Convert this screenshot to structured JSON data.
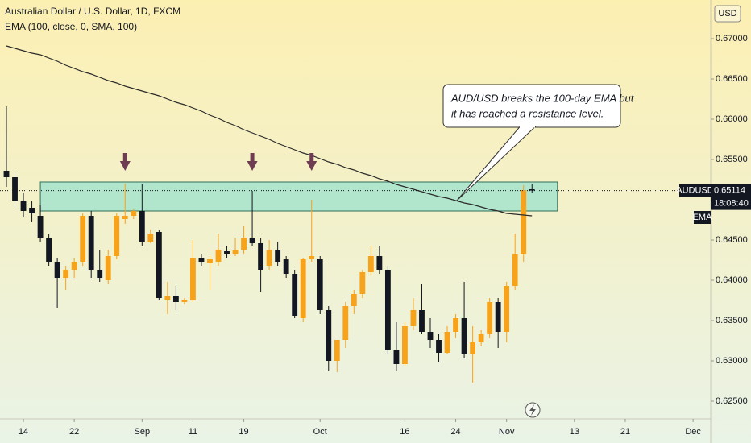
{
  "chart_data": {
    "type": "candlestick",
    "title": "Australian Dollar / U.S. Dollar, 1D, FXCM",
    "subtitle": "EMA (100, close, 0, SMA, 100)",
    "currency": "USD",
    "symbol": "AUDUSD",
    "countdown": "18:08:40",
    "up_color": "#f7a21b",
    "down_color": "#131722",
    "open": [
      0.6536,
      0.6528,
      0.6498,
      0.649,
      0.648,
      0.6453,
      0.6423,
      0.6403,
      0.6413,
      0.6423,
      0.648,
      0.6413,
      0.64,
      0.643,
      0.6476,
      0.648,
      0.6486,
      0.6448,
      0.646,
      0.6376,
      0.638,
      0.6373,
      0.6375,
      0.6428,
      0.6421,
      0.6423,
      0.6436,
      0.6433,
      0.6438,
      0.6453,
      0.6446,
      0.6418,
      0.6438,
      0.6426,
      0.6408,
      0.6353,
      0.6426,
      0.6426,
      0.6363,
      0.63,
      0.6326,
      0.6368,
      0.6383,
      0.641,
      0.643,
      0.6413,
      0.6313,
      0.6296,
      0.6343,
      0.6363,
      0.6336,
      0.6326,
      0.631,
      0.6336,
      0.6353,
      0.6308,
      0.6323,
      0.6333,
      0.6373,
      0.6336,
      0.6393,
      0.6433,
      0.6513
    ],
    "high": [
      0.6616,
      0.6533,
      0.6508,
      0.6498,
      0.6493,
      0.6458,
      0.6428,
      0.6418,
      0.6428,
      0.6483,
      0.6486,
      0.6438,
      0.6438,
      0.6483,
      0.652,
      0.6488,
      0.652,
      0.6463,
      0.6463,
      0.6398,
      0.6393,
      0.6378,
      0.645,
      0.6433,
      0.643,
      0.6458,
      0.6443,
      0.6453,
      0.6468,
      0.6511,
      0.6453,
      0.645,
      0.6448,
      0.643,
      0.6413,
      0.6428,
      0.65,
      0.643,
      0.6368,
      0.6323,
      0.6373,
      0.6388,
      0.6413,
      0.6443,
      0.6443,
      0.6418,
      0.6348,
      0.6348,
      0.6378,
      0.6396,
      0.6353,
      0.6333,
      0.6343,
      0.6358,
      0.6398,
      0.6343,
      0.6338,
      0.6378,
      0.6378,
      0.6398,
      0.6458,
      0.6518,
      0.652
    ],
    "low": [
      0.6516,
      0.649,
      0.6478,
      0.6473,
      0.6448,
      0.6418,
      0.6366,
      0.6388,
      0.6403,
      0.6418,
      0.6403,
      0.6398,
      0.6396,
      0.6426,
      0.647,
      0.6476,
      0.6443,
      0.6446,
      0.6376,
      0.6358,
      0.6363,
      0.637,
      0.6373,
      0.6418,
      0.6388,
      0.6418,
      0.6428,
      0.643,
      0.6433,
      0.6443,
      0.6386,
      0.6413,
      0.6418,
      0.6403,
      0.6353,
      0.6348,
      0.6423,
      0.6358,
      0.6288,
      0.6286,
      0.6316,
      0.6358,
      0.6378,
      0.6406,
      0.6408,
      0.6308,
      0.6288,
      0.6293,
      0.6338,
      0.6333,
      0.6316,
      0.6298,
      0.6308,
      0.6328,
      0.6303,
      0.6273,
      0.6318,
      0.6328,
      0.6316,
      0.6323,
      0.6388,
      0.6423,
      0.6508
    ],
    "close": [
      0.6528,
      0.6498,
      0.6486,
      0.6483,
      0.6453,
      0.6423,
      0.6403,
      0.6413,
      0.6423,
      0.648,
      0.6413,
      0.6403,
      0.643,
      0.648,
      0.648,
      0.6486,
      0.6448,
      0.6458,
      0.6378,
      0.638,
      0.6373,
      0.6375,
      0.6428,
      0.6423,
      0.6426,
      0.6438,
      0.6433,
      0.6438,
      0.6453,
      0.6446,
      0.6413,
      0.6438,
      0.6423,
      0.6408,
      0.6356,
      0.6426,
      0.643,
      0.6363,
      0.63,
      0.6326,
      0.6368,
      0.6383,
      0.641,
      0.643,
      0.6413,
      0.6313,
      0.6296,
      0.6343,
      0.6363,
      0.6336,
      0.6326,
      0.631,
      0.6336,
      0.6353,
      0.6308,
      0.6323,
      0.6333,
      0.6373,
      0.6336,
      0.6393,
      0.6433,
      0.6512,
      0.65114
    ],
    "ema": {
      "name": "EMA",
      "color": "#2b2b2b",
      "values": [
        0.6691,
        0.6688,
        0.6685,
        0.6682,
        0.668,
        0.6676,
        0.6672,
        0.6667,
        0.6663,
        0.6659,
        0.6656,
        0.6652,
        0.6648,
        0.6645,
        0.6641,
        0.6638,
        0.6635,
        0.6632,
        0.6629,
        0.6625,
        0.6621,
        0.6618,
        0.6614,
        0.661,
        0.6605,
        0.6601,
        0.6596,
        0.6592,
        0.6587,
        0.6583,
        0.6579,
        0.6575,
        0.657,
        0.6566,
        0.6562,
        0.6558,
        0.6555,
        0.6551,
        0.6547,
        0.6544,
        0.654,
        0.6537,
        0.6533,
        0.653,
        0.6526,
        0.6523,
        0.6519,
        0.6516,
        0.6513,
        0.651,
        0.6507,
        0.6504,
        0.6502,
        0.6499,
        0.6496,
        0.6494,
        0.6491,
        0.6488,
        0.6486,
        0.6483,
        0.6482,
        0.6481,
        0.648
      ]
    },
    "zone": {
      "x": [
        4,
        65
      ],
      "y": [
        0.6486,
        0.6522
      ],
      "color": "#a4e4cc"
    },
    "arrows": [
      14,
      29,
      36
    ],
    "arrow_color": "#6e3d52",
    "annotation": [
      "AUD/USD breaks the 100-day EMA but",
      "it has reached a resistance level."
    ],
    "xlim": [
      -0.76,
      83.08
    ],
    "xticks": [
      {
        "value": 2,
        "label": "14"
      },
      {
        "value": 8,
        "label": "22"
      },
      {
        "value": 16,
        "label": "Sep"
      },
      {
        "value": 22,
        "label": "11"
      },
      {
        "value": 28,
        "label": "19"
      },
      {
        "value": 37,
        "label": "Oct"
      },
      {
        "value": 47,
        "label": "16"
      },
      {
        "value": 53,
        "label": "24"
      },
      {
        "value": 59,
        "label": "Nov"
      },
      {
        "value": 67,
        "label": "13"
      },
      {
        "value": 73,
        "label": "21"
      },
      {
        "value": 81,
        "label": "Dec"
      }
    ],
    "ylim": [
      0.6228,
      0.6748
    ],
    "yticks": [
      {
        "value": 0.625,
        "label": "0.62500"
      },
      {
        "value": 0.63,
        "label": "0.63000"
      },
      {
        "value": 0.635,
        "label": "0.63500"
      },
      {
        "value": 0.64,
        "label": "0.64000"
      },
      {
        "value": 0.645,
        "label": "0.64500"
      },
      {
        "value": 0.655,
        "label": "0.65500"
      },
      {
        "value": 0.66,
        "label": "0.66000"
      },
      {
        "value": 0.665,
        "label": "0.66500"
      },
      {
        "value": 0.67,
        "label": "0.67000"
      }
    ]
  }
}
